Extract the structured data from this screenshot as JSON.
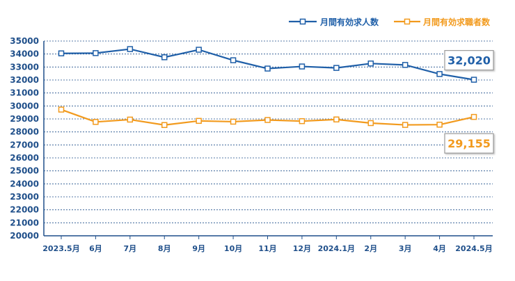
{
  "chart_data": {
    "type": "line",
    "categories": [
      "2023.5月",
      "6月",
      "7月",
      "8月",
      "9月",
      "10月",
      "11月",
      "12月",
      "2024.1月",
      "2月",
      "3月",
      "4月",
      "2024.5月"
    ],
    "ylim": [
      20000,
      35000
    ],
    "yticks": [
      20000,
      21000,
      22000,
      23000,
      24000,
      25000,
      26000,
      27000,
      28000,
      29000,
      30000,
      31000,
      32000,
      33000,
      34000,
      35000
    ],
    "grid": true,
    "grid_style": "dotted-horizontal",
    "legend_position": "top-right",
    "series": [
      {
        "name": "月間有効求人数",
        "color": "#1f5fa8",
        "values": [
          34050,
          34070,
          34380,
          33750,
          34330,
          33520,
          32880,
          33040,
          32930,
          33270,
          33160,
          32460,
          32020
        ],
        "end_label": "32,020"
      },
      {
        "name": "月間有効求職者数",
        "color": "#f29a1d",
        "values": [
          29720,
          28770,
          28950,
          28530,
          28850,
          28790,
          28920,
          28830,
          28960,
          28680,
          28540,
          28560,
          29155
        ],
        "end_label": "29,155"
      }
    ]
  }
}
